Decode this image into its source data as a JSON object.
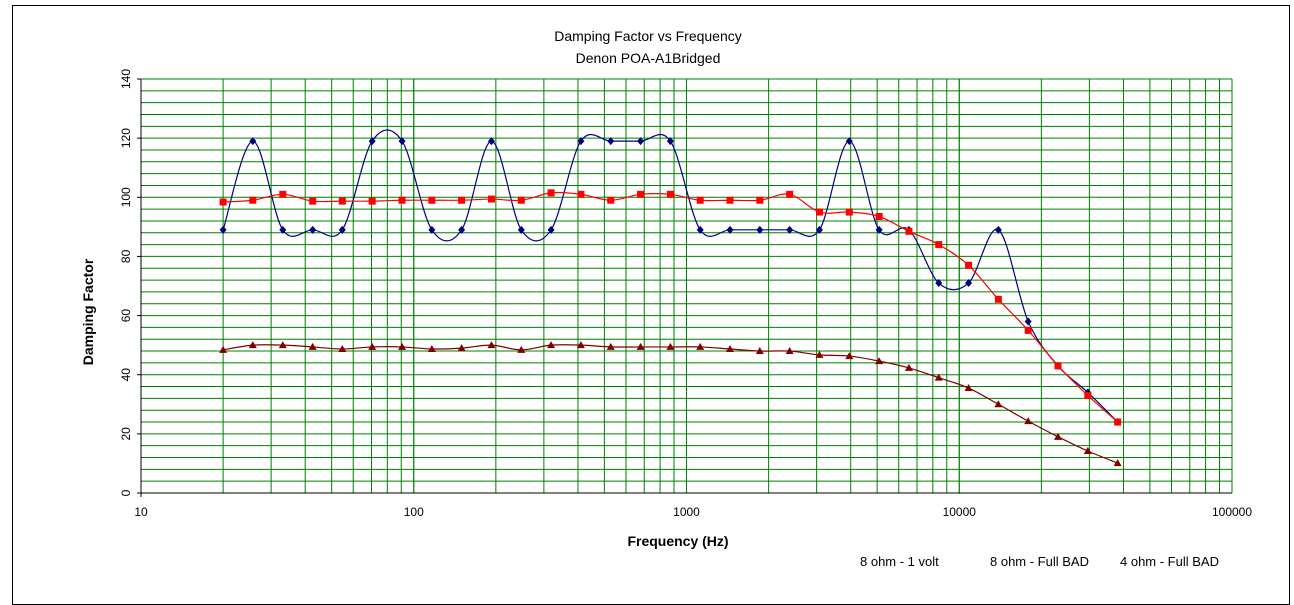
{
  "chart_data": {
    "type": "line",
    "title": "Damping Factor  vs Frequency",
    "subtitle": "Denon POA-A1Bridged",
    "xlabel": "Frequency (Hz)",
    "ylabel": "Damping Factor",
    "xscale": "log",
    "xlim": [
      10,
      100000
    ],
    "ylim": [
      0,
      140
    ],
    "x_ticks": [
      "10",
      "100",
      "1000",
      "10000",
      "100000"
    ],
    "y_ticks": [
      "0",
      "20",
      "40",
      "60",
      "80",
      "100",
      "120",
      "140"
    ],
    "grid": true,
    "legend_position": "bottom",
    "x": [
      20,
      25.7,
      33.1,
      42.6,
      54.7,
      70.4,
      90.6,
      116.5,
      149.8,
      192.7,
      247.9,
      318.8,
      410.1,
      527.5,
      678.5,
      872.7,
      1122.5,
      1443.8,
      1857.1,
      2388.7,
      3072.5,
      3952,
      5083.2,
      6538.3,
      8409.8,
      10817,
      13913,
      17896,
      23019,
      29607,
      38082
    ],
    "series": [
      {
        "name": "8 ohm - 1 volt",
        "color": "#000080",
        "marker": "diamond",
        "values": [
          89,
          119,
          89,
          89,
          89,
          119,
          119,
          89,
          89,
          119,
          89,
          89,
          119,
          119,
          119,
          119,
          89,
          89,
          89,
          89,
          89,
          119,
          89,
          89,
          71,
          71,
          89,
          58,
          43,
          34,
          24
        ]
      },
      {
        "name": "8 ohm - Full BAD",
        "color": "#ff0000",
        "marker": "square",
        "values": [
          98.4,
          99,
          101,
          98.7,
          98.7,
          98.7,
          99,
          99,
          99,
          99.4,
          99,
          101.5,
          101,
          99,
          101,
          101,
          99,
          99,
          99,
          101,
          95,
          95,
          93.5,
          88.5,
          84,
          77,
          65.5,
          55,
          43,
          33,
          24
        ]
      },
      {
        "name": "4 ohm - Full BAD",
        "color": "#800000",
        "marker": "triangle",
        "values": [
          48.4,
          50,
          50,
          49.4,
          48.7,
          49.4,
          49.4,
          48.7,
          49,
          50,
          48.4,
          50,
          50,
          49.4,
          49.4,
          49.4,
          49.4,
          48.7,
          48,
          48,
          46.7,
          46.3,
          44.6,
          42.3,
          39,
          35.5,
          30,
          24.3,
          19,
          14.2,
          10.1
        ]
      }
    ],
    "colors": {
      "grid": "#008000",
      "axis": "#000000"
    }
  }
}
